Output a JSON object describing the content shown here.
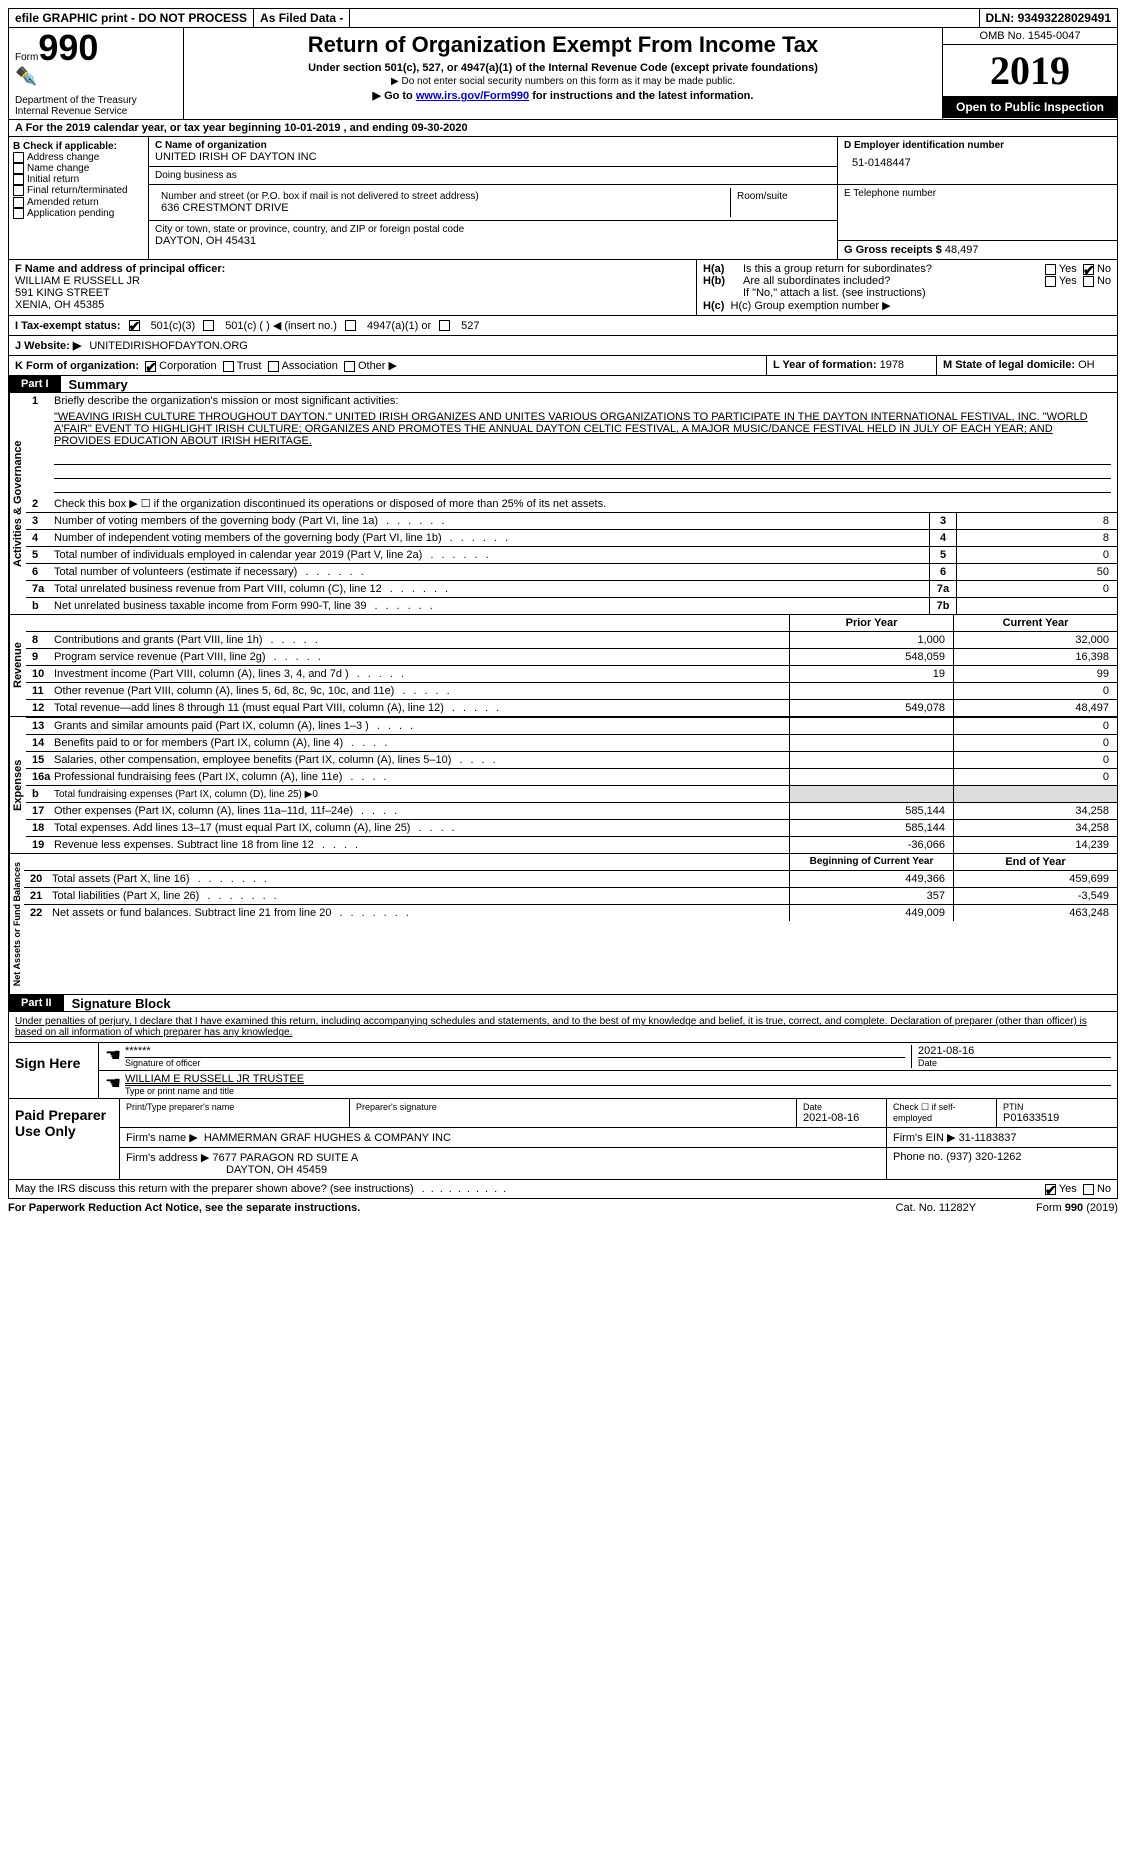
{
  "topbar": {
    "efile": "efile GRAPHIC print - DO NOT PROCESS",
    "asfiled": "As Filed Data -",
    "dln_label": "DLN:",
    "dln": "93493228029491"
  },
  "header": {
    "form_label": "Form",
    "form_num": "990",
    "dept": "Department of the Treasury\nInternal Revenue Service",
    "title": "Return of Organization Exempt From Income Tax",
    "sub": "Under section 501(c), 527, or 4947(a)(1) of the Internal Revenue Code (except private foundations)",
    "note1": "▶ Do not enter social security numbers on this form as it may be made public.",
    "note2_pre": "▶ Go to ",
    "note2_link": "www.irs.gov/Form990",
    "note2_post": " for instructions and the latest information.",
    "omb": "OMB No. 1545-0047",
    "year": "2019",
    "inspection": "Open to Public Inspection"
  },
  "row_a": "A   For the 2019 calendar year, or tax year beginning 10-01-2019   , and ending 09-30-2020",
  "col_b": {
    "label": "B Check if applicable:",
    "items": [
      "Address change",
      "Name change",
      "Initial return",
      "Final return/terminated",
      "Amended return",
      "Application pending"
    ]
  },
  "col_c": {
    "name_label": "C Name of organization",
    "name": "UNITED IRISH OF DAYTON INC",
    "dba_label": "Doing business as",
    "dba": "",
    "street_label": "Number and street (or P.O. box if mail is not delivered to street address)",
    "street": "636 CRESTMONT DRIVE",
    "room_label": "Room/suite",
    "city_label": "City or town, state or province, country, and ZIP or foreign postal code",
    "city": "DAYTON, OH  45431"
  },
  "col_d": {
    "ein_label": "D Employer identification number",
    "ein": "51-0148447",
    "phone_label": "E Telephone number",
    "phone": "",
    "receipts_label": "G Gross receipts $",
    "receipts": "48,497"
  },
  "officer": {
    "label": "F  Name and address of principal officer:",
    "name": "WILLIAM E RUSSELL JR",
    "street": "591 KING STREET",
    "city": "XENIA, OH  45385",
    "ha": "H(a)  Is this a group return for",
    "ha2": "subordinates?",
    "hb": "H(b)  Are all subordinates included?",
    "hb2": "If \"No,\" attach a list. (see instructions)",
    "hc": "H(c)  Group exemption number ▶",
    "yes": "Yes",
    "no": "No"
  },
  "status": {
    "label": "I   Tax-exempt status:",
    "opt1": "501(c)(3)",
    "opt2": "501(c) (   ) ◀ (insert no.)",
    "opt3": "4947(a)(1) or",
    "opt4": "527"
  },
  "website": {
    "label": "J   Website: ▶",
    "val": "UNITEDIRISHOFDAYTON.ORG"
  },
  "org_form": {
    "label": "K Form of organization:",
    "opts": [
      "Corporation",
      "Trust",
      "Association",
      "Other ▶"
    ],
    "year_label": "L Year of formation:",
    "year": "1978",
    "state_label": "M State of legal domicile:",
    "state": "OH"
  },
  "part1": {
    "label": "Part I",
    "title": "Summary",
    "q1_label": "1",
    "q1": "Briefly describe the organization's mission or most significant activities:",
    "mission": "\"WEAVING IRISH CULTURE THROUGHOUT DAYTON.\" UNITED IRISH ORGANIZES AND UNITES VARIOUS ORGANIZATIONS TO PARTICIPATE IN THE DAYTON INTERNATIONAL FESTIVAL, INC. \"WORLD A'FAIR\" EVENT TO HIGHLIGHT IRISH CULTURE; ORGANIZES AND PROMOTES THE ANNUAL DAYTON CELTIC FESTIVAL, A MAJOR MUSIC/DANCE FESTIVAL HELD IN JULY OF EACH YEAR; AND PROVIDES EDUCATION ABOUT IRISH HERITAGE.",
    "q2": "Check this box ▶ ☐  if the organization discontinued its operations or disposed of more than 25% of its net assets.",
    "lines": [
      {
        "n": "3",
        "t": "Number of voting members of the governing body (Part VI, line 1a)",
        "b": "3",
        "v": "8"
      },
      {
        "n": "4",
        "t": "Number of independent voting members of the governing body (Part VI, line 1b)",
        "b": "4",
        "v": "8"
      },
      {
        "n": "5",
        "t": "Total number of individuals employed in calendar year 2019 (Part V, line 2a)",
        "b": "5",
        "v": "0"
      },
      {
        "n": "6",
        "t": "Total number of volunteers (estimate if necessary)",
        "b": "6",
        "v": "50"
      },
      {
        "n": "7a",
        "t": "Total unrelated business revenue from Part VIII, column (C), line 12",
        "b": "7a",
        "v": "0"
      },
      {
        "n": "b",
        "t": "Net unrelated business taxable income from Form 990-T, line 39",
        "b": "7b",
        "v": ""
      }
    ],
    "col_hdr1": "Prior Year",
    "col_hdr2": "Current Year",
    "revenue": [
      {
        "n": "8",
        "t": "Contributions and grants (Part VIII, line 1h)",
        "p": "1,000",
        "c": "32,000"
      },
      {
        "n": "9",
        "t": "Program service revenue (Part VIII, line 2g)",
        "p": "548,059",
        "c": "16,398"
      },
      {
        "n": "10",
        "t": "Investment income (Part VIII, column (A), lines 3, 4, and 7d )",
        "p": "19",
        "c": "99"
      },
      {
        "n": "11",
        "t": "Other revenue (Part VIII, column (A), lines 5, 6d, 8c, 9c, 10c, and 11e)",
        "p": "",
        "c": "0"
      },
      {
        "n": "12",
        "t": "Total revenue—add lines 8 through 11 (must equal Part VIII, column (A), line 12)",
        "p": "549,078",
        "c": "48,497"
      }
    ],
    "expenses": [
      {
        "n": "13",
        "t": "Grants and similar amounts paid (Part IX, column (A), lines 1–3 )",
        "p": "",
        "c": "0"
      },
      {
        "n": "14",
        "t": "Benefits paid to or for members (Part IX, column (A), line 4)",
        "p": "",
        "c": "0"
      },
      {
        "n": "15",
        "t": "Salaries, other compensation, employee benefits (Part IX, column (A), lines 5–10)",
        "p": "",
        "c": "0"
      },
      {
        "n": "16a",
        "t": "Professional fundraising fees (Part IX, column (A), line 11e)",
        "p": "",
        "c": "0"
      },
      {
        "n": "b",
        "t": "Total fundraising expenses (Part IX, column (D), line 25) ▶0",
        "p": null,
        "c": null
      },
      {
        "n": "17",
        "t": "Other expenses (Part IX, column (A), lines 11a–11d, 11f–24e)",
        "p": "585,144",
        "c": "34,258"
      },
      {
        "n": "18",
        "t": "Total expenses. Add lines 13–17 (must equal Part IX, column (A), line 25)",
        "p": "585,144",
        "c": "34,258"
      },
      {
        "n": "19",
        "t": "Revenue less expenses. Subtract line 18 from line 12",
        "p": "-36,066",
        "c": "14,239"
      }
    ],
    "na_hdr1": "Beginning of Current Year",
    "na_hdr2": "End of Year",
    "netassets": [
      {
        "n": "20",
        "t": "Total assets (Part X, line 16)",
        "p": "449,366",
        "c": "459,699"
      },
      {
        "n": "21",
        "t": "Total liabilities (Part X, line 26)",
        "p": "357",
        "c": "-3,549"
      },
      {
        "n": "22",
        "t": "Net assets or fund balances. Subtract line 21 from line 20",
        "p": "449,009",
        "c": "463,248"
      }
    ],
    "tab_activities": "Activities & Governance",
    "tab_revenue": "Revenue",
    "tab_expenses": "Expenses",
    "tab_net": "Net Assets or Fund Balances"
  },
  "part2": {
    "label": "Part II",
    "title": "Signature Block",
    "decl": "Under penalties of perjury, I declare that I have examined this return, including accompanying schedules and statements, and to the best of my knowledge and belief, it is true, correct, and complete. Declaration of preparer (other than officer) is based on all information of which preparer has any knowledge.",
    "sign_here": "Sign Here",
    "stars": "******",
    "sig_officer": "Signature of officer",
    "date": "Date",
    "sig_date": "2021-08-16",
    "officer_name": "WILLIAM E RUSSELL JR TRUSTEE",
    "type_name": "Type or print name and title",
    "paid": "Paid Preparer Use Only",
    "prep_name_label": "Print/Type preparer's name",
    "prep_sig_label": "Preparer's signature",
    "prep_date": "2021-08-16",
    "check_self": "Check ☐ if self-employed",
    "ptin_label": "PTIN",
    "ptin": "P01633519",
    "firm_name_label": "Firm's name    ▶",
    "firm_name": "HAMMERMAN GRAF HUGHES & COMPANY INC",
    "firm_ein_label": "Firm's EIN ▶",
    "firm_ein": "31-1183837",
    "firm_addr_label": "Firm's address ▶",
    "firm_addr": "7677 PARAGON RD SUITE A",
    "firm_city": "DAYTON, OH  45459",
    "phone_label": "Phone no.",
    "phone": "(937) 320-1262",
    "discuss": "May the IRS discuss this return with the preparer shown above? (see instructions)",
    "yes": "Yes",
    "no": "No"
  },
  "footer": {
    "pra": "For Paperwork Reduction Act Notice, see the separate instructions.",
    "cat": "Cat. No. 11282Y",
    "form": "Form 990 (2019)"
  }
}
